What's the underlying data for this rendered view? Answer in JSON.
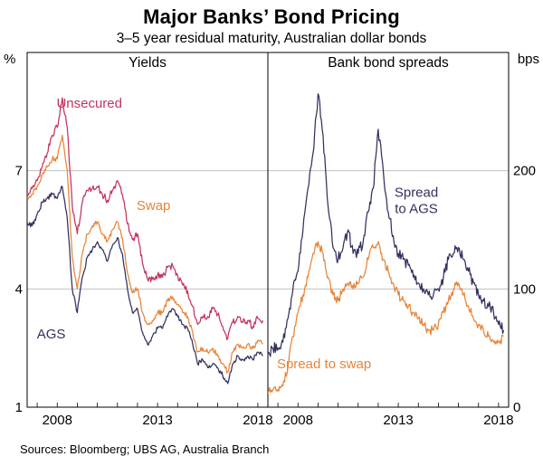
{
  "title": "Major Banks’ Bond Pricing",
  "subtitle": "3–5 year residual maturity, Australian dollar bonds",
  "footer": "Sources: Bloomberg; UBS AG, Australia Branch",
  "chart_data": {
    "type": "line",
    "x_axis": {
      "min": 2006.5,
      "max": 2018.5,
      "labeled_ticks": [
        2008,
        2013,
        2018
      ],
      "minor_tick_interval": 1
    },
    "panels": [
      {
        "title": "Yields",
        "unit": "%",
        "ylim": [
          1,
          10
        ],
        "yticks": [
          1,
          4,
          7
        ],
        "x_start": 2006.0,
        "x_step": 0.25,
        "series": [
          {
            "name": "AGS",
            "color": "#32315f",
            "noise": 0.06,
            "values": [
              5.2,
              5.5,
              5.7,
              5.6,
              5.9,
              6.2,
              6.3,
              6.4,
              6.3,
              6.6,
              5.8,
              4.0,
              3.4,
              4.3,
              4.8,
              5.0,
              5.2,
              5.0,
              4.7,
              5.1,
              5.3,
              4.9,
              4.0,
              3.4,
              3.5,
              2.9,
              2.6,
              2.8,
              3.0,
              3.0,
              3.3,
              3.5,
              3.3,
              3.1,
              3.0,
              2.6,
              2.1,
              2.2,
              2.0,
              2.1,
              2.0,
              1.8,
              1.6,
              2.1,
              2.3,
              2.2,
              2.3,
              2.2,
              2.4,
              2.3
            ]
          },
          {
            "name": "Swap",
            "color": "#e78539",
            "noise": 0.07,
            "values": [
              5.8,
              6.1,
              6.3,
              6.4,
              6.6,
              6.9,
              7.1,
              7.3,
              7.3,
              7.9,
              7.0,
              4.8,
              4.0,
              4.9,
              5.4,
              5.6,
              5.7,
              5.4,
              5.2,
              5.5,
              5.7,
              5.3,
              4.4,
              3.9,
              4.0,
              3.4,
              3.1,
              3.2,
              3.4,
              3.4,
              3.7,
              3.8,
              3.6,
              3.4,
              3.3,
              2.9,
              2.4,
              2.5,
              2.4,
              2.5,
              2.3,
              2.1,
              1.9,
              2.4,
              2.6,
              2.5,
              2.6,
              2.5,
              2.7,
              2.6
            ]
          },
          {
            "name": "Unsecured",
            "color": "#c4335d",
            "noise": 0.09,
            "values": [
              5.9,
              6.2,
              6.4,
              6.55,
              6.75,
              7.1,
              7.45,
              7.9,
              8.1,
              8.85,
              8.1,
              6.1,
              5.4,
              6.2,
              6.5,
              6.55,
              6.6,
              6.4,
              6.25,
              6.5,
              6.75,
              6.4,
              5.65,
              5.25,
              5.4,
              4.65,
              4.25,
              4.25,
              4.35,
              4.3,
              4.55,
              4.6,
              4.35,
              4.1,
              3.95,
              3.55,
              3.1,
              3.3,
              3.3,
              3.5,
              3.35,
              3.05,
              2.75,
              3.15,
              3.3,
              3.15,
              3.2,
              3.05,
              3.25,
              3.2
            ]
          }
        ],
        "annotations": [
          {
            "lines": [
              "Unsecured"
            ],
            "x": 2009.6,
            "y": 8.6,
            "color": "#c4335d"
          },
          {
            "lines": [
              "Swap"
            ],
            "x": 2012.8,
            "y": 6.0,
            "color": "#e78539"
          },
          {
            "lines": [
              "AGS"
            ],
            "x": 2007.7,
            "y": 2.75,
            "color": "#32315f"
          }
        ]
      },
      {
        "title": "Bank bond spreads",
        "unit": "bps",
        "ylim": [
          0,
          300
        ],
        "yticks": [
          0,
          100,
          200
        ],
        "x_start": 2006.0,
        "x_step": 0.25,
        "series": [
          {
            "name": "Spread to swap",
            "color": "#e78539",
            "noise": 4,
            "values": [
              10,
              10,
              12,
              15,
              15,
              18,
              35,
              60,
              80,
              95,
              110,
              130,
              140,
              130,
              110,
              95,
              90,
              100,
              105,
              100,
              105,
              110,
              125,
              135,
              140,
              125,
              115,
              105,
              95,
              90,
              85,
              80,
              75,
              70,
              65,
              65,
              70,
              80,
              90,
              100,
              105,
              95,
              85,
              75,
              70,
              65,
              60,
              55,
              55,
              60
            ]
          },
          {
            "name": "Spread to AGS",
            "color": "#32315f",
            "noise": 5,
            "values": [
              45,
              42,
              45,
              50,
              50,
              55,
              75,
              100,
              115,
              150,
              185,
              215,
              265,
              230,
              170,
              135,
              125,
              135,
              150,
              130,
              130,
              140,
              165,
              185,
              235,
              200,
              165,
              145,
              130,
              125,
              120,
              110,
              105,
              100,
              95,
              95,
              100,
              110,
              125,
              130,
              135,
              125,
              115,
              105,
              95,
              90,
              85,
              80,
              70,
              65
            ]
          }
        ],
        "annotations": [
          {
            "lines": [
              "Spread",
              "to AGS"
            ],
            "x": 2013.9,
            "y": 178,
            "color": "#32315f"
          },
          {
            "lines": [
              "Spread to swap"
            ],
            "x": 2009.3,
            "y": 33,
            "color": "#e78539"
          }
        ]
      }
    ]
  }
}
